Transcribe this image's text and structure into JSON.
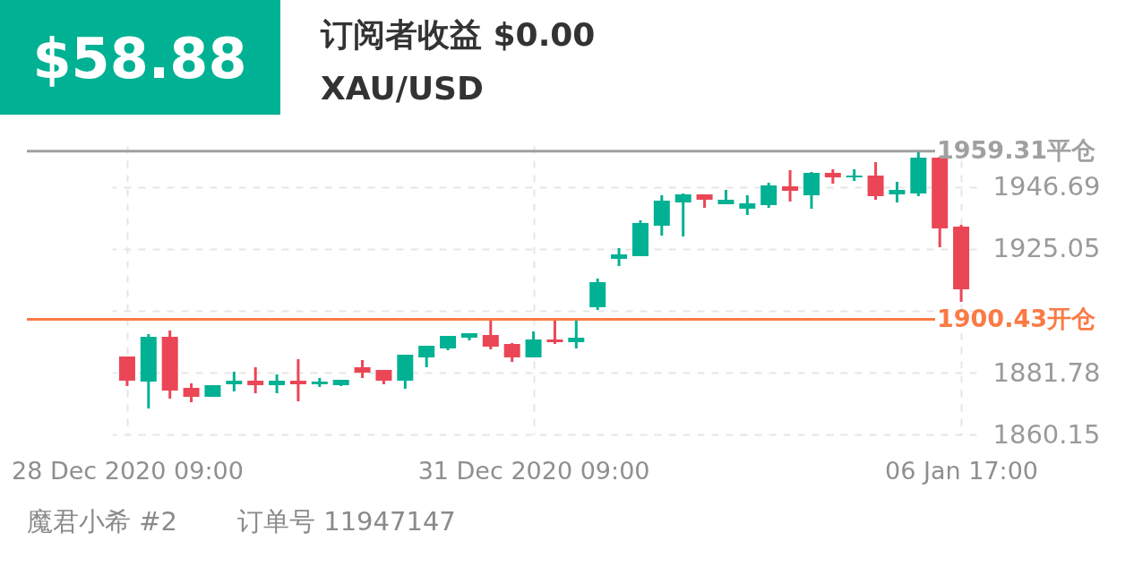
{
  "chart_data": {
    "type": "candlestick",
    "title": "$58.88",
    "subtitle": "订阅者收益 $0.00",
    "annotations": [
      "XAU/USD",
      "魔君小希 #2",
      "订单号 11947147"
    ],
    "categories": [
      "28 Dec 2020 09:00",
      null,
      null,
      null,
      null,
      null,
      null,
      null,
      null,
      null,
      null,
      null,
      null,
      null,
      null,
      null,
      null,
      null,
      null,
      "31 Dec 2020 09:00",
      null,
      null,
      null,
      null,
      null,
      null,
      null,
      null,
      null,
      null,
      null,
      null,
      null,
      null,
      null,
      null,
      null,
      null,
      null,
      "06 Jan  17:00"
    ],
    "ohlc": [
      [
        1887.42,
        1887.42,
        1877.08,
        1878.96
      ],
      [
        1878.65,
        1895.26,
        1869.24,
        1894.32
      ],
      [
        1894.32,
        1896.52,
        1872.69,
        1875.51
      ],
      [
        1876.45,
        1878.02,
        1871.44,
        1873.32
      ],
      [
        1873.32,
        1877.39,
        1873.32,
        1877.39
      ],
      [
        1877.71,
        1882.1,
        1875.2,
        1878.96
      ],
      [
        1878.96,
        1883.66,
        1874.57,
        1877.39
      ],
      [
        1877.39,
        1881.15,
        1874.57,
        1878.96
      ],
      [
        1878.96,
        1886.48,
        1871.75,
        1877.71
      ],
      [
        1877.71,
        1879.9,
        1876.77,
        1878.65
      ],
      [
        1877.39,
        1879.27,
        1877.08,
        1879.27
      ],
      [
        1883.66,
        1886.17,
        1879.9,
        1881.78
      ],
      [
        1882.72,
        1882.72,
        1877.71,
        1878.96
      ],
      [
        1878.96,
        1888.05,
        1876.14,
        1888.05
      ],
      [
        1887.11,
        1891.19,
        1883.66,
        1891.19
      ],
      [
        1890.25,
        1894.64,
        1889.62,
        1894.64
      ],
      [
        1894.01,
        1895.58,
        1893.07,
        1895.58
      ],
      [
        1894.95,
        1899.96,
        1889.93,
        1890.87
      ],
      [
        1891.81,
        1892.13,
        1885.54,
        1887.11
      ],
      [
        1887.11,
        1896.2,
        1887.11,
        1893.38
      ],
      [
        1893.38,
        1899.96,
        1891.81,
        1892.44
      ],
      [
        1892.44,
        1900.59,
        1890.25,
        1894.01
      ],
      [
        1904.67,
        1914.7,
        1903.73,
        1913.45
      ],
      [
        1921.6,
        1925.36,
        1919.09,
        1923.16
      ],
      [
        1922.54,
        1935.08,
        1922.54,
        1934.14
      ],
      [
        1933.2,
        1943.85,
        1929.75,
        1941.97
      ],
      [
        1941.35,
        1944.48,
        1929.43,
        1944.17
      ],
      [
        1944.17,
        1944.17,
        1939.47,
        1942.29
      ],
      [
        1940.72,
        1945.74,
        1940.72,
        1942.29
      ],
      [
        1939.15,
        1943.85,
        1936.96,
        1941.03
      ],
      [
        1940.41,
        1948.24,
        1939.47,
        1947.3
      ],
      [
        1946.99,
        1952.63,
        1941.66,
        1945.42
      ],
      [
        1943.85,
        1952.0,
        1939.15,
        1951.69
      ],
      [
        1951.69,
        1952.95,
        1947.93,
        1950.12
      ],
      [
        1950.12,
        1952.95,
        1948.87,
        1950.75
      ],
      [
        1950.75,
        1955.45,
        1942.29,
        1943.54
      ],
      [
        1944.17,
        1948.56,
        1941.35,
        1945.74
      ],
      [
        1944.48,
        1958.9,
        1943.54,
        1957.02
      ],
      [
        1957.02,
        1957.34,
        1925.67,
        1932.26
      ],
      [
        1932.88,
        1933.51,
        1906.55,
        1910.94
      ]
    ],
    "colors": [
      "#eb4656",
      "#00b193",
      "#eb4656",
      "#eb4656",
      "#00b193",
      "#00b193",
      "#eb4656",
      "#00b193",
      "#eb4656",
      "#00b193",
      "#00b193",
      "#eb4656",
      "#eb4656",
      "#00b193",
      "#00b193",
      "#00b193",
      "#00b193",
      "#eb4656",
      "#eb4656",
      "#00b193",
      "#eb4656",
      "#00b193",
      "#00b193",
      "#00b193",
      "#00b193",
      "#00b193",
      "#00b193",
      "#eb4656",
      "#00b193",
      "#00b193",
      "#00b193",
      "#eb4656",
      "#00b193",
      "#eb4656",
      "#00b193",
      "#eb4656",
      "#00b193",
      "#00b193",
      "#eb4656",
      "#eb4656"
    ],
    "ylim": [
      1860.15,
      1961.1
    ],
    "yticks": [
      1860.15,
      1881.78,
      {
        "value": 1903.42,
        "label": null
      },
      1925.05,
      1946.69
    ],
    "grid": true,
    "ref_lines": [
      {
        "axis": "y",
        "value": 1959.31,
        "label": "1959.31平仓",
        "color": "#a0a0a0"
      },
      {
        "axis": "y",
        "value": 1900.43,
        "label": "1900.43开仓",
        "color": "#fb7a45"
      }
    ]
  }
}
